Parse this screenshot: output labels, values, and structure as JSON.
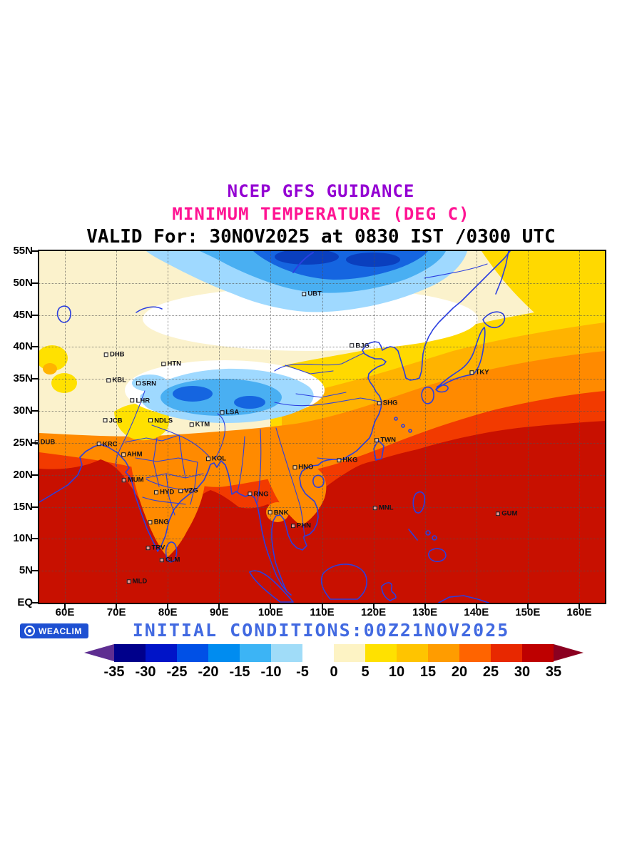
{
  "header": {
    "line1": "NCEP GFS GUIDANCE",
    "line2": "MINIMUM TEMPERATURE (DEG C)",
    "line3": "VALID For: 30NOV2025 at 0830 IST /0300 UTC"
  },
  "footer": {
    "badge_label": "WEACLIM",
    "initial_conditions": "INITIAL CONDITIONS:00Z21NOV2025"
  },
  "palette": {
    "title1_color": "#9400D3",
    "title2_color": "#FF1493",
    "initial_conditions_color": "#4169E1",
    "coastline_color": "#2B3FE0",
    "badge_background": "#1E50D2"
  },
  "colorbar": {
    "units": "DEG C",
    "boundary_labels": [
      "-35",
      "-30",
      "-25",
      "-20",
      "-15",
      "-10",
      "-5",
      "0",
      "5",
      "10",
      "15",
      "20",
      "25",
      "30",
      "35"
    ],
    "arrow_left_color": "#5E2E91",
    "arrow_right_color": "#8B0020",
    "box_colors": [
      "#00008B",
      "#0014C8",
      "#0050E6",
      "#008CF0",
      "#3CB4F5",
      "#A0DCF8",
      "#FFFFFF",
      "#FDF3C4",
      "#FFE100",
      "#FFC400",
      "#FF9C00",
      "#FF6400",
      "#E82800",
      "#BE0000"
    ]
  },
  "map": {
    "lon_min": 55,
    "lon_max": 165,
    "lat_min": 0,
    "lat_max": 55,
    "lat_ticks": [
      {
        "label": "EQ",
        "value": 0
      },
      {
        "label": "5N",
        "value": 5
      },
      {
        "label": "10N",
        "value": 10
      },
      {
        "label": "15N",
        "value": 15
      },
      {
        "label": "20N",
        "value": 20
      },
      {
        "label": "25N",
        "value": 25
      },
      {
        "label": "30N",
        "value": 30
      },
      {
        "label": "35N",
        "value": 35
      },
      {
        "label": "40N",
        "value": 40
      },
      {
        "label": "45N",
        "value": 45
      },
      {
        "label": "50N",
        "value": 50
      },
      {
        "label": "55N",
        "value": 55
      }
    ],
    "lon_ticks": [
      {
        "label": "60E",
        "value": 60
      },
      {
        "label": "70E",
        "value": 70
      },
      {
        "label": "80E",
        "value": 80
      },
      {
        "label": "90E",
        "value": 90
      },
      {
        "label": "100E",
        "value": 100
      },
      {
        "label": "110E",
        "value": 110
      },
      {
        "label": "120E",
        "value": 120
      },
      {
        "label": "130E",
        "value": 130
      },
      {
        "label": "140E",
        "value": 140
      },
      {
        "label": "150E",
        "value": 150
      },
      {
        "label": "160E",
        "value": 160
      }
    ],
    "stations": [
      {
        "code": "UBT",
        "lon": 108.0,
        "lat": 48.3
      },
      {
        "code": "BJG",
        "lon": 117.3,
        "lat": 40.2
      },
      {
        "code": "DHB",
        "lon": 69.6,
        "lat": 38.8
      },
      {
        "code": "HTN",
        "lon": 80.7,
        "lat": 37.4
      },
      {
        "code": "KBL",
        "lon": 70.0,
        "lat": 34.8
      },
      {
        "code": "SRN",
        "lon": 75.8,
        "lat": 34.3
      },
      {
        "code": "LHR",
        "lon": 74.6,
        "lat": 31.6
      },
      {
        "code": "JCB",
        "lon": 69.3,
        "lat": 28.5
      },
      {
        "code": "NDLS",
        "lon": 78.6,
        "lat": 28.5
      },
      {
        "code": "KTM",
        "lon": 86.2,
        "lat": 27.9
      },
      {
        "code": "LSA",
        "lon": 92.0,
        "lat": 29.8
      },
      {
        "code": "SHG",
        "lon": 122.7,
        "lat": 31.2
      },
      {
        "code": "TKY",
        "lon": 140.6,
        "lat": 36.0
      },
      {
        "code": "DUB",
        "lon": 56.1,
        "lat": 25.1
      },
      {
        "code": "KRC",
        "lon": 68.2,
        "lat": 24.8
      },
      {
        "code": "AHM",
        "lon": 73.0,
        "lat": 23.2
      },
      {
        "code": "KOL",
        "lon": 89.4,
        "lat": 22.5
      },
      {
        "code": "TWN",
        "lon": 122.3,
        "lat": 25.4
      },
      {
        "code": "HKG",
        "lon": 114.9,
        "lat": 22.3
      },
      {
        "code": "HNO",
        "lon": 106.3,
        "lat": 21.2
      },
      {
        "code": "MUM",
        "lon": 73.2,
        "lat": 19.2
      },
      {
        "code": "HYD",
        "lon": 79.3,
        "lat": 17.3
      },
      {
        "code": "VZG",
        "lon": 84.0,
        "lat": 17.5
      },
      {
        "code": "RNG",
        "lon": 97.6,
        "lat": 17.0
      },
      {
        "code": "BNK",
        "lon": 101.5,
        "lat": 14.1
      },
      {
        "code": "MNL",
        "lon": 121.9,
        "lat": 14.8
      },
      {
        "code": "GUM",
        "lon": 145.9,
        "lat": 13.9
      },
      {
        "code": "BNG",
        "lon": 78.2,
        "lat": 12.6
      },
      {
        "code": "PHN",
        "lon": 105.9,
        "lat": 12.0
      },
      {
        "code": "TRV",
        "lon": 77.6,
        "lat": 8.6
      },
      {
        "code": "CLM",
        "lon": 80.4,
        "lat": 6.7
      },
      {
        "code": "MLD",
        "lon": 74.0,
        "lat": 3.3
      }
    ]
  }
}
